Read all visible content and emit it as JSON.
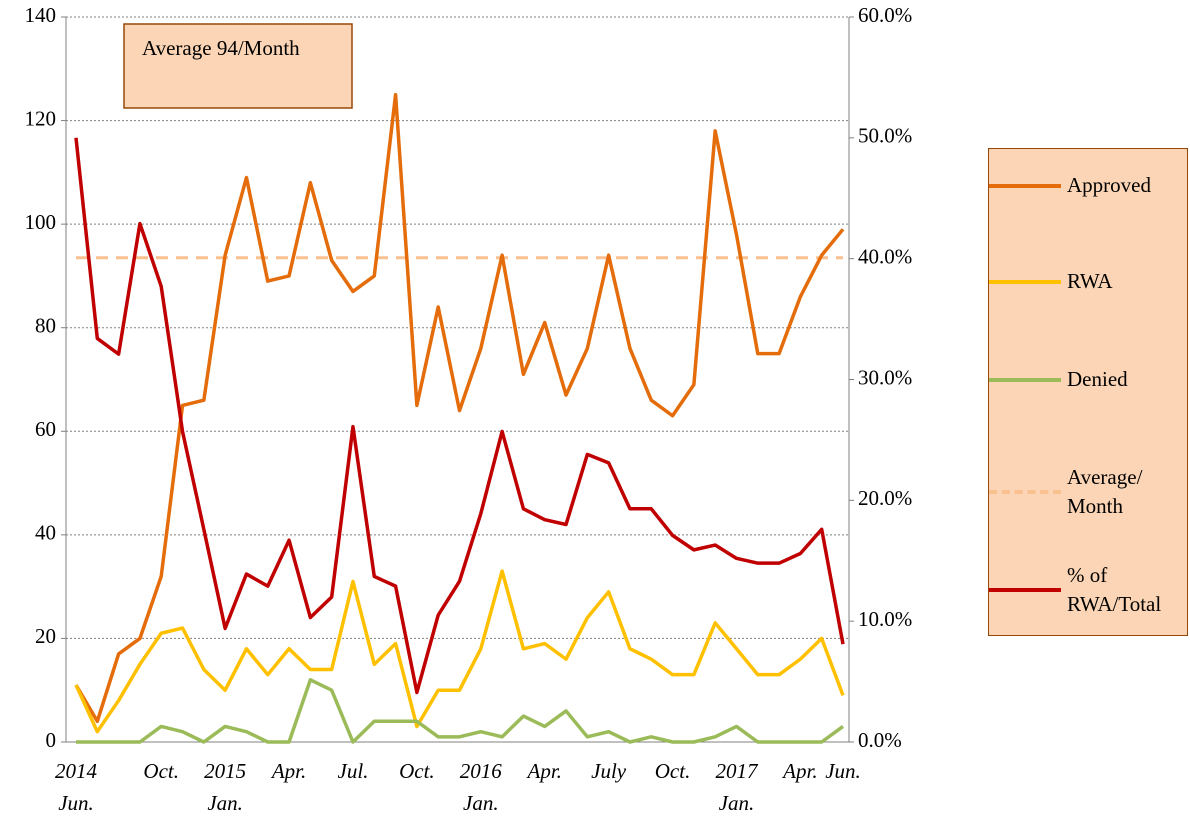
{
  "chart_data": {
    "type": "line",
    "annotation": "Average 94/Month",
    "categories": [
      "2014",
      null,
      null,
      null,
      "Oct.",
      null,
      null,
      "2015",
      null,
      null,
      "Apr.",
      null,
      null,
      "Jul.",
      null,
      null,
      "Oct.",
      null,
      null,
      "2016",
      null,
      null,
      "Apr.",
      null,
      null,
      "July",
      null,
      null,
      "Oct.",
      null,
      null,
      "2017",
      null,
      null,
      "Apr.",
      null,
      "Jun."
    ],
    "categories_line2": [
      "Jun.",
      null,
      null,
      null,
      null,
      null,
      null,
      "Jan.",
      null,
      null,
      null,
      null,
      null,
      null,
      null,
      null,
      null,
      null,
      null,
      "Jan.",
      null,
      null,
      null,
      null,
      null,
      null,
      null,
      null,
      null,
      null,
      null,
      "Jan.",
      null,
      null,
      null,
      null,
      null
    ],
    "series": [
      {
        "name": "Approved",
        "color": "#e46c0a",
        "values": [
          11,
          4,
          17,
          20,
          32,
          65,
          66,
          94,
          109,
          89,
          90,
          108,
          93,
          87,
          90,
          125,
          65,
          84,
          64,
          76,
          94,
          71,
          81,
          67,
          76,
          94,
          76,
          66,
          63,
          69,
          118,
          98,
          75,
          75,
          86,
          94,
          99
        ]
      },
      {
        "name": "RWA",
        "color": "#ffc000",
        "values": [
          11,
          2,
          8,
          15,
          21,
          22,
          14,
          10,
          18,
          13,
          18,
          14,
          14,
          31,
          15,
          19,
          3,
          10,
          10,
          18,
          33,
          18,
          19,
          16,
          24,
          29,
          18,
          16,
          13,
          13,
          23,
          18,
          13,
          13,
          16,
          20,
          9
        ]
      },
      {
        "name": "Denied",
        "color": "#9bbb59",
        "values": [
          0,
          0,
          0,
          0,
          3,
          2,
          0,
          3,
          2,
          0,
          0,
          12,
          10,
          0,
          4,
          4,
          4,
          1,
          1,
          2,
          1,
          5,
          3,
          6,
          1,
          2,
          0,
          1,
          0,
          0,
          1,
          3,
          0,
          0,
          0,
          0,
          3
        ]
      },
      {
        "name": "Average/ Month",
        "color": "#fac090",
        "dashed": true,
        "value": 93.5
      },
      {
        "name": "% of RWA/Total",
        "color": "#c00000",
        "axis": "y2",
        "values": [
          50,
          33.4,
          32.1,
          42.9,
          37.7,
          25.7,
          17.6,
          9.4,
          13.9,
          12.9,
          16.7,
          10.3,
          12,
          26.1,
          13.7,
          12.9,
          4.1,
          10.5,
          13.3,
          18.9,
          25.7,
          19.3,
          18.4,
          18,
          23.8,
          23.1,
          19.3,
          19.3,
          17.1,
          15.9,
          16.3,
          15.2,
          14.8,
          14.8,
          15.6,
          17.6,
          8.1
        ]
      }
    ],
    "ylim": [
      0,
      140
    ],
    "yticks": [
      0,
      20,
      40,
      60,
      80,
      100,
      120,
      140
    ],
    "y2lim": [
      0,
      60
    ],
    "y2ticks": [
      {
        "value": 0,
        "label": "0.0%"
      },
      {
        "value": 10,
        "label": "10.0%"
      },
      {
        "value": 20,
        "label": "20.0%"
      },
      {
        "value": 30,
        "label": "30.0%"
      },
      {
        "value": 40,
        "label": "40.0%"
      },
      {
        "value": 50,
        "label": "50.0%"
      },
      {
        "value": 60,
        "label": "60.0%"
      }
    ],
    "grid": true,
    "legend": "right"
  }
}
